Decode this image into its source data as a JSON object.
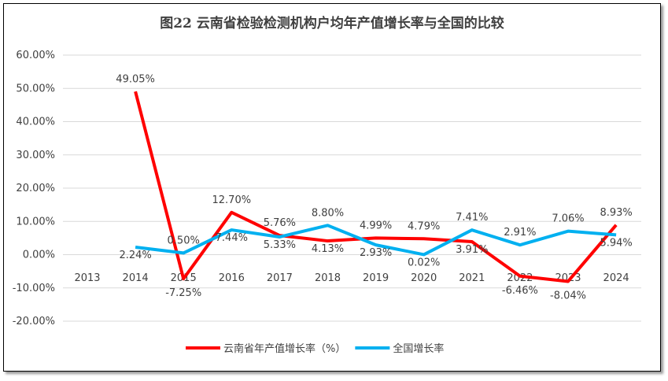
{
  "chart_data": {
    "type": "line",
    "title": "图22  云南省检验检测机构户均年产值增长率与全国的比较",
    "categories": [
      "2013",
      "2014",
      "2015",
      "2016",
      "2017",
      "2018",
      "2019",
      "2020",
      "2021",
      "2022",
      "2023",
      "2024"
    ],
    "ylim": [
      -20,
      60
    ],
    "yticks": [
      "60.00%",
      "50.00%",
      "40.00%",
      "30.00%",
      "20.00%",
      "10.00%",
      "0.00%",
      "-10.00%",
      "-20.00%"
    ],
    "ytick_values": [
      60,
      50,
      40,
      30,
      20,
      10,
      0,
      -10,
      -20
    ],
    "grid": true,
    "legend": "bottom",
    "series": [
      {
        "name": "云南省年产值增长率（%）",
        "color": "#FF0000",
        "values": [
          null,
          49.05,
          -7.25,
          12.7,
          5.76,
          4.13,
          4.99,
          4.79,
          3.91,
          -6.46,
          -8.04,
          8.93
        ],
        "labels": [
          "",
          "49.05%",
          "-7.25%",
          "12.70%",
          "5.76%",
          "4.13%",
          "4.99%",
          "4.79%",
          "3.91%",
          "-6.46%",
          "-8.04%",
          "8.93%"
        ],
        "label_pos": [
          "",
          "above",
          "below",
          "above",
          "above",
          "below",
          "above",
          "above",
          "below",
          "below",
          "below",
          "above"
        ]
      },
      {
        "name": "全国增长率",
        "color": "#00B0F0",
        "values": [
          null,
          2.24,
          0.5,
          7.44,
          5.33,
          8.8,
          2.93,
          0.02,
          7.41,
          2.91,
          7.06,
          5.94
        ],
        "labels": [
          "",
          "2.24%",
          "0.50%",
          "7.44%",
          "5.33%",
          "8.80%",
          "2.93%",
          "0.02%",
          "7.41%",
          "2.91%",
          "7.06%",
          "5.94%"
        ],
        "label_pos": [
          "",
          "below",
          "above",
          "below",
          "below",
          "above",
          "below",
          "below",
          "above",
          "above",
          "above",
          "below"
        ]
      }
    ]
  }
}
